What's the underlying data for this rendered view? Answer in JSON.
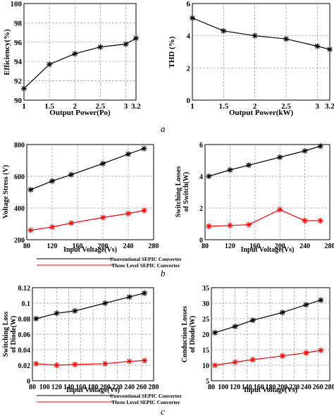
{
  "captions": [
    "a",
    "b",
    "c"
  ],
  "chart_data": [
    {
      "type": "line",
      "xlabel": "Output Power(Po)",
      "ylabel": "Efficiency(%)",
      "xticks": [
        "1",
        "1.5",
        "2",
        "2.5",
        "3",
        "3.2"
      ],
      "yticks": [
        "90",
        "92",
        "94",
        "96",
        "98",
        "100"
      ],
      "xlim": [
        1,
        3.2
      ],
      "ylim": [
        90,
        100
      ],
      "grid": true,
      "series": [
        {
          "color": "#000000",
          "marker": "*",
          "x": [
            1,
            1.5,
            2,
            2.5,
            3,
            3.2
          ],
          "y": [
            91.2,
            93.7,
            94.8,
            95.5,
            95.8,
            96.4
          ]
        }
      ]
    },
    {
      "type": "line",
      "xlabel": "Output Power(kW)",
      "ylabel": "THD (%)",
      "xticks": [
        "1",
        "1.5",
        "2",
        "2.5",
        "3",
        "3.2"
      ],
      "yticks": [
        "0",
        "2",
        "4",
        "6"
      ],
      "xlim": [
        1,
        3.2
      ],
      "ylim": [
        0,
        6
      ],
      "grid": true,
      "series": [
        {
          "color": "#000000",
          "marker": "*",
          "x": [
            1,
            1.5,
            2,
            2.5,
            3,
            3.2
          ],
          "y": [
            5.1,
            4.3,
            4.0,
            3.8,
            3.35,
            3.15
          ]
        }
      ]
    },
    {
      "type": "line",
      "xlabel": "Input Voltage(Vs)",
      "ylabel": "Voltage Stress (V)",
      "xticks": [
        "80",
        "120",
        "160",
        "200",
        "240",
        "280"
      ],
      "yticks": [
        "200",
        "400",
        "600",
        "800"
      ],
      "xlim": [
        80,
        280
      ],
      "ylim": [
        200,
        800
      ],
      "grid": true,
      "series": [
        {
          "color": "#000000",
          "marker": "*",
          "x": [
            86,
            120,
            150,
            200,
            240,
            265
          ],
          "y": [
            515,
            570,
            610,
            680,
            740,
            775
          ]
        },
        {
          "color": "#ff0000",
          "marker": "*",
          "x": [
            86,
            120,
            150,
            200,
            240,
            265
          ],
          "y": [
            260,
            280,
            305,
            340,
            365,
            385
          ]
        }
      ]
    },
    {
      "type": "line",
      "xlabel": "Input Voltage(Vs)",
      "ylabel": "Switching Losses of Switch(W)",
      "xticks": [
        "80",
        "120",
        "160",
        "200",
        "240",
        "280"
      ],
      "yticks": [
        "0",
        "2",
        "4",
        "6"
      ],
      "xlim": [
        80,
        280
      ],
      "ylim": [
        0,
        6
      ],
      "grid": true,
      "series": [
        {
          "color": "#000000",
          "marker": "*",
          "x": [
            86,
            120,
            150,
            200,
            240,
            265
          ],
          "y": [
            4.0,
            4.4,
            4.7,
            5.2,
            5.6,
            5.9
          ]
        },
        {
          "color": "#ff0000",
          "marker": "*",
          "x": [
            86,
            120,
            150,
            200,
            240,
            265
          ],
          "y": [
            0.85,
            0.9,
            0.95,
            1.9,
            1.2,
            1.2
          ]
        }
      ]
    },
    {
      "type": "line",
      "xlabel": "Input Voltage(Vs)",
      "ylabel": "Switching Loss of Diode(W)",
      "xticks": [
        "80",
        "100",
        "120",
        "140",
        "160",
        "180",
        "200",
        "220",
        "240",
        "260",
        "280"
      ],
      "yticks": [
        "0",
        "0.02",
        "0.04",
        "0.06",
        "0.08",
        "0.1",
        "0.12"
      ],
      "xlim": [
        80,
        280
      ],
      "ylim": [
        0,
        0.12
      ],
      "grid": true,
      "series": [
        {
          "color": "#000000",
          "marker": "*",
          "x": [
            86,
            120,
            150,
            200,
            240,
            265
          ],
          "y": [
            0.08,
            0.087,
            0.09,
            0.1,
            0.108,
            0.113
          ]
        },
        {
          "color": "#ff0000",
          "marker": "*",
          "x": [
            86,
            120,
            150,
            200,
            240,
            265
          ],
          "y": [
            0.022,
            0.02,
            0.021,
            0.022,
            0.025,
            0.026
          ]
        }
      ]
    },
    {
      "type": "line",
      "xlabel": "Input Voltage(Vs)",
      "ylabel": "Conduction Losses of Diode(W)",
      "xticks": [
        "80",
        "100",
        "120",
        "140",
        "160",
        "180",
        "200",
        "220",
        "240",
        "260",
        "280"
      ],
      "yticks": [
        "5",
        "10",
        "15",
        "20",
        "25",
        "30",
        "35"
      ],
      "xlim": [
        80,
        280
      ],
      "ylim": [
        5,
        35
      ],
      "grid": true,
      "series": [
        {
          "color": "#000000",
          "marker": "*",
          "x": [
            86,
            120,
            150,
            200,
            240,
            265
          ],
          "y": [
            20.5,
            22.5,
            24.5,
            27,
            29.5,
            31
          ]
        },
        {
          "color": "#ff0000",
          "marker": "*",
          "x": [
            86,
            120,
            150,
            200,
            240,
            265
          ],
          "y": [
            10,
            11,
            11.8,
            13,
            14,
            14.8
          ]
        }
      ]
    }
  ],
  "legends": [
    {
      "items": [
        {
          "label": "Conventional SEPIC Converter",
          "color": "#000000"
        },
        {
          "label": "Three Level SEPIC Converter",
          "color": "#ff0000"
        }
      ]
    },
    {
      "items": [
        {
          "label": "Conventional SEPIC Converter",
          "color": "#000000"
        },
        {
          "label": "Three Level SEPIC Converter",
          "color": "#ff0000"
        }
      ]
    }
  ]
}
